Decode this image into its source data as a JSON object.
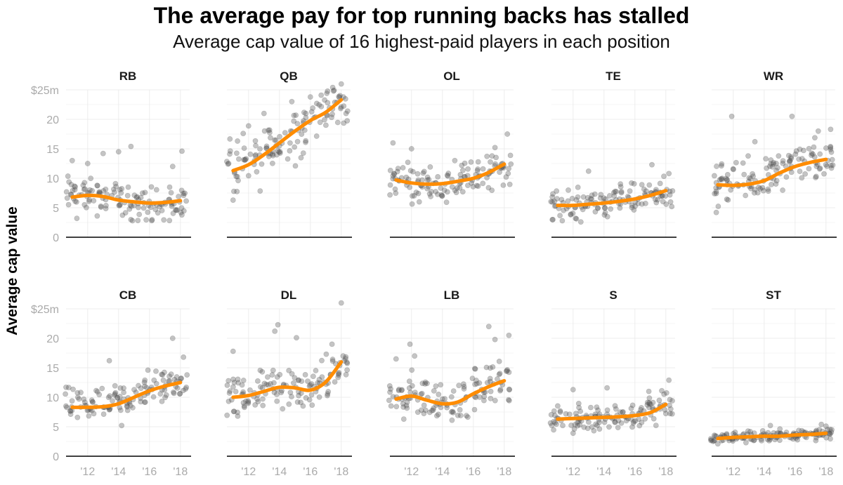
{
  "chart_data": {
    "type": "scatter",
    "title": "The average pay for top running backs has stalled",
    "subtitle": "Average cap value of 16 highest-paid players in each position",
    "ylabel": "Average cap value",
    "xlabel": "",
    "xlim": [
      2010.6,
      2018.6
    ],
    "ylim": [
      0,
      25
    ],
    "y_ticks": [
      {
        "value": 0,
        "label": "0"
      },
      {
        "value": 5,
        "label": "5"
      },
      {
        "value": 10,
        "label": "10"
      },
      {
        "value": 15,
        "label": "15"
      },
      {
        "value": 20,
        "label": "20"
      },
      {
        "value": 25,
        "label": "$25m"
      }
    ],
    "x_ticks": [
      {
        "value": 2012,
        "label": "'12"
      },
      {
        "value": 2014,
        "label": "'14"
      },
      {
        "value": 2016,
        "label": "'16"
      },
      {
        "value": 2018,
        "label": "'18"
      }
    ],
    "grid": true,
    "colors": {
      "points": "#555555",
      "trend": "#ff8c00",
      "text": "#1a1a1a",
      "tick": "#aaaaaa",
      "grid": "#ececec"
    },
    "panels": [
      {
        "name": "RB",
        "trend": [
          [
            2011,
            6.8
          ],
          [
            2012,
            7.1
          ],
          [
            2013,
            6.9
          ],
          [
            2014,
            6.3
          ],
          [
            2015,
            6.0
          ],
          [
            2016,
            5.8
          ],
          [
            2017,
            5.9
          ],
          [
            2018,
            6.2
          ]
        ],
        "scatter": [
          [
            2011,
            7.5,
            4.5
          ],
          [
            2012,
            7.0,
            4.3
          ],
          [
            2013,
            6.6,
            4.5
          ],
          [
            2014,
            6.2,
            4.4
          ],
          [
            2015,
            5.9,
            4.6
          ],
          [
            2016,
            5.6,
            4.4
          ],
          [
            2017,
            5.7,
            4.6
          ],
          [
            2018,
            6.0,
            4.5
          ]
        ],
        "extra": [
          [
            2011,
            13.0
          ],
          [
            2012,
            12.5
          ],
          [
            2013,
            14.2
          ],
          [
            2014,
            14.5
          ],
          [
            2014.8,
            15.4
          ],
          [
            2017.5,
            12.0
          ],
          [
            2018.1,
            14.6
          ],
          [
            2011.3,
            3.2
          ],
          [
            2014.9,
            2.8
          ]
        ]
      },
      {
        "name": "QB",
        "trend": [
          [
            2011,
            11.3
          ],
          [
            2012,
            12.3
          ],
          [
            2013,
            14.0
          ],
          [
            2014,
            16.0
          ],
          [
            2015,
            18.0
          ],
          [
            2016,
            19.8
          ],
          [
            2017,
            21.2
          ],
          [
            2018,
            23.3
          ]
        ],
        "scatter": [
          [
            2011,
            12.0,
            8.0
          ],
          [
            2012,
            12.8,
            8.0
          ],
          [
            2013,
            14.3,
            8.0
          ],
          [
            2014,
            16.0,
            8.0
          ],
          [
            2015,
            18.0,
            7.5
          ],
          [
            2016,
            19.8,
            7.0
          ],
          [
            2017,
            21.2,
            6.5
          ],
          [
            2018,
            22.4,
            5.5
          ]
        ],
        "extra": [
          [
            2013.0,
            21.0
          ],
          [
            2014.8,
            23.0
          ],
          [
            2016.0,
            23.8
          ],
          [
            2016.7,
            24.1
          ],
          [
            2017.5,
            24.8
          ],
          [
            2018.0,
            26.0
          ],
          [
            2011.0,
            6.3
          ]
        ]
      },
      {
        "name": "OL",
        "trend": [
          [
            2011,
            9.7
          ],
          [
            2012,
            9.2
          ],
          [
            2013,
            9.0
          ],
          [
            2014,
            9.1
          ],
          [
            2015,
            9.5
          ],
          [
            2016,
            10.0
          ],
          [
            2017,
            11.0
          ],
          [
            2018,
            12.4
          ]
        ],
        "scatter": [
          [
            2011,
            9.8,
            4.5
          ],
          [
            2012,
            9.3,
            4.5
          ],
          [
            2013,
            9.3,
            4.5
          ],
          [
            2014,
            9.3,
            4.5
          ],
          [
            2015,
            9.6,
            4.5
          ],
          [
            2016,
            10.1,
            4.5
          ],
          [
            2017,
            11.0,
            4.5
          ],
          [
            2018,
            12.0,
            4.5
          ]
        ],
        "extra": [
          [
            2010.8,
            16.0
          ],
          [
            2012.0,
            15.0
          ],
          [
            2014.8,
            13.0
          ],
          [
            2017.4,
            15.2
          ],
          [
            2018.2,
            17.5
          ],
          [
            2012.5,
            6.0
          ]
        ]
      },
      {
        "name": "TE",
        "trend": [
          [
            2011,
            5.4
          ],
          [
            2012,
            5.4
          ],
          [
            2013,
            5.6
          ],
          [
            2014,
            5.8
          ],
          [
            2015,
            6.1
          ],
          [
            2016,
            6.5
          ],
          [
            2017,
            7.1
          ],
          [
            2018,
            7.9
          ]
        ],
        "scatter": [
          [
            2011,
            5.6,
            3.8
          ],
          [
            2012,
            5.6,
            3.8
          ],
          [
            2013,
            5.8,
            3.8
          ],
          [
            2014,
            6.0,
            3.8
          ],
          [
            2015,
            6.2,
            3.8
          ],
          [
            2016,
            6.6,
            3.8
          ],
          [
            2017,
            7.2,
            3.8
          ],
          [
            2018,
            7.8,
            3.8
          ]
        ],
        "extra": [
          [
            2013.0,
            11.2
          ],
          [
            2017.1,
            12.3
          ],
          [
            2018.2,
            10.8
          ],
          [
            2011.3,
            2.8
          ],
          [
            2012.5,
            2.6
          ]
        ]
      },
      {
        "name": "WR",
        "trend": [
          [
            2011,
            8.9
          ],
          [
            2012,
            8.8
          ],
          [
            2013,
            9.0
          ],
          [
            2014,
            9.6
          ],
          [
            2015,
            10.9
          ],
          [
            2016,
            12.0
          ],
          [
            2017,
            12.7
          ],
          [
            2018,
            13.2
          ]
        ],
        "scatter": [
          [
            2011,
            9.0,
            5.5
          ],
          [
            2012,
            9.0,
            5.5
          ],
          [
            2013,
            9.3,
            5.5
          ],
          [
            2014,
            10.0,
            5.5
          ],
          [
            2015,
            11.0,
            5.5
          ],
          [
            2016,
            12.0,
            5.5
          ],
          [
            2017,
            12.8,
            5.5
          ],
          [
            2018,
            13.2,
            5.5
          ]
        ],
        "extra": [
          [
            2011.9,
            20.5
          ],
          [
            2015.8,
            20.5
          ],
          [
            2013.4,
            16.2
          ],
          [
            2017.5,
            18.0
          ],
          [
            2018.3,
            18.3
          ],
          [
            2010.9,
            4.2
          ]
        ]
      },
      {
        "name": "CB",
        "trend": [
          [
            2011,
            8.3
          ],
          [
            2012,
            8.3
          ],
          [
            2013,
            8.4
          ],
          [
            2014,
            8.9
          ],
          [
            2015,
            10.0
          ],
          [
            2016,
            11.1
          ],
          [
            2017,
            11.9
          ],
          [
            2018,
            12.5
          ]
        ],
        "scatter": [
          [
            2011,
            8.5,
            4.5
          ],
          [
            2012,
            8.5,
            4.5
          ],
          [
            2013,
            8.7,
            4.5
          ],
          [
            2014,
            9.2,
            4.5
          ],
          [
            2015,
            10.2,
            4.5
          ],
          [
            2016,
            11.2,
            4.5
          ],
          [
            2017,
            12.0,
            4.5
          ],
          [
            2018,
            12.4,
            4.5
          ]
        ],
        "extra": [
          [
            2013.4,
            16.2
          ],
          [
            2017.5,
            20.0
          ],
          [
            2015.9,
            14.6
          ],
          [
            2018.2,
            16.8
          ],
          [
            2014.2,
            5.2
          ]
        ]
      },
      {
        "name": "DL",
        "trend": [
          [
            2011,
            10.0
          ],
          [
            2012,
            10.3
          ],
          [
            2013,
            11.0
          ],
          [
            2014,
            11.7
          ],
          [
            2015,
            11.6
          ],
          [
            2016,
            11.2
          ],
          [
            2017,
            12.6
          ],
          [
            2018,
            16.0
          ]
        ],
        "scatter": [
          [
            2011,
            10.2,
            5.5
          ],
          [
            2012,
            10.4,
            5.5
          ],
          [
            2013,
            11.0,
            5.5
          ],
          [
            2014,
            11.6,
            5.5
          ],
          [
            2015,
            11.6,
            5.5
          ],
          [
            2016,
            11.4,
            5.5
          ],
          [
            2017,
            12.7,
            5.5
          ],
          [
            2018,
            15.5,
            5.5
          ]
        ],
        "extra": [
          [
            2013.9,
            22.3
          ],
          [
            2013.7,
            21.2
          ],
          [
            2015.1,
            20.1
          ],
          [
            2017.4,
            19.0
          ],
          [
            2018.0,
            26.0
          ],
          [
            2011.0,
            17.8
          ],
          [
            2011.3,
            6.8
          ]
        ]
      },
      {
        "name": "LB",
        "trend": [
          [
            2011,
            9.7
          ],
          [
            2012,
            10.2
          ],
          [
            2013,
            9.5
          ],
          [
            2014,
            8.9
          ],
          [
            2015,
            9.2
          ],
          [
            2016,
            10.6
          ],
          [
            2017,
            11.8
          ],
          [
            2018,
            12.8
          ]
        ],
        "scatter": [
          [
            2011,
            10.0,
            5.5
          ],
          [
            2012,
            10.2,
            5.5
          ],
          [
            2013,
            9.8,
            5.5
          ],
          [
            2014,
            9.4,
            5.5
          ],
          [
            2015,
            9.6,
            5.5
          ],
          [
            2016,
            10.8,
            5.5
          ],
          [
            2017,
            11.9,
            5.5
          ],
          [
            2018,
            12.6,
            5.5
          ]
        ],
        "extra": [
          [
            2011.9,
            19.0
          ],
          [
            2012.2,
            17.0
          ],
          [
            2017.0,
            22.0
          ],
          [
            2017.4,
            19.8
          ],
          [
            2018.3,
            20.5
          ],
          [
            2011.0,
            16.5
          ],
          [
            2011.5,
            6.3
          ]
        ]
      },
      {
        "name": "S",
        "trend": [
          [
            2011,
            6.3
          ],
          [
            2012,
            6.4
          ],
          [
            2013,
            6.5
          ],
          [
            2014,
            6.6
          ],
          [
            2015,
            6.7
          ],
          [
            2016,
            6.9
          ],
          [
            2017,
            7.4
          ],
          [
            2018,
            8.8
          ]
        ],
        "scatter": [
          [
            2011,
            6.5,
            4.0
          ],
          [
            2012,
            6.6,
            4.0
          ],
          [
            2013,
            6.7,
            4.0
          ],
          [
            2014,
            6.8,
            4.0
          ],
          [
            2015,
            6.9,
            4.0
          ],
          [
            2016,
            7.0,
            4.0
          ],
          [
            2017,
            7.5,
            4.0
          ],
          [
            2018,
            8.7,
            4.0
          ]
        ],
        "extra": [
          [
            2014.2,
            11.6
          ],
          [
            2012.0,
            11.3
          ],
          [
            2016.9,
            11.0
          ],
          [
            2018.2,
            12.9
          ],
          [
            2012.0,
            3.9
          ]
        ]
      },
      {
        "name": "ST",
        "trend": [
          [
            2011,
            3.0
          ],
          [
            2012,
            3.2
          ],
          [
            2013,
            3.3
          ],
          [
            2014,
            3.4
          ],
          [
            2015,
            3.4
          ],
          [
            2016,
            3.6
          ],
          [
            2017,
            3.7
          ],
          [
            2018,
            3.9
          ]
        ],
        "scatter": [
          [
            2011,
            3.0,
            1.6
          ],
          [
            2012,
            3.2,
            1.6
          ],
          [
            2013,
            3.3,
            1.6
          ],
          [
            2014,
            3.4,
            1.6
          ],
          [
            2015,
            3.5,
            1.6
          ],
          [
            2016,
            3.6,
            1.6
          ],
          [
            2017,
            3.8,
            1.6
          ],
          [
            2018,
            3.9,
            1.6
          ]
        ],
        "extra": [
          [
            2014.4,
            5.2
          ],
          [
            2017.7,
            5.4
          ],
          [
            2018.0,
            5.1
          ],
          [
            2011.0,
            2.1
          ]
        ]
      }
    ]
  }
}
